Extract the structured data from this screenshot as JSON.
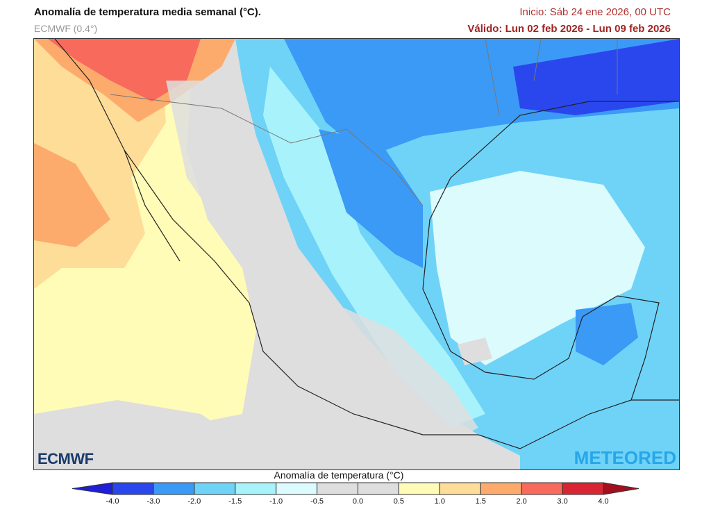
{
  "header": {
    "title": "Anomalía de temperatura media semanal (°C).",
    "model": "ECMWF (0.4°)",
    "init": "Inicio: Sáb 24 ene 2026, 00 UTC",
    "valid": "Válido: Lun 02 feb 2026 - Lun 09 feb 2026"
  },
  "legend": {
    "title": "Anomalía de temperatura (°C)",
    "ticks": [
      "-4.0",
      "-3.0",
      "-2.0",
      "-1.5",
      "-1.0",
      "-0.5",
      "0.0",
      "0.5",
      "1.0",
      "1.5",
      "2.0",
      "3.0",
      "4.0"
    ],
    "colors": [
      "#2a47ee",
      "#3b9af5",
      "#6fd3f8",
      "#a8f3fb",
      "#dcfbfc",
      "#dedede",
      "#dedede",
      "#fffcb8",
      "#fedd98",
      "#fcab6c",
      "#f76a5c",
      "#d82433"
    ],
    "under_color": "#1f1fd6",
    "over_color": "#a30f1f"
  },
  "logos": {
    "left": "ECMWF",
    "right": "METEORED"
  }
}
